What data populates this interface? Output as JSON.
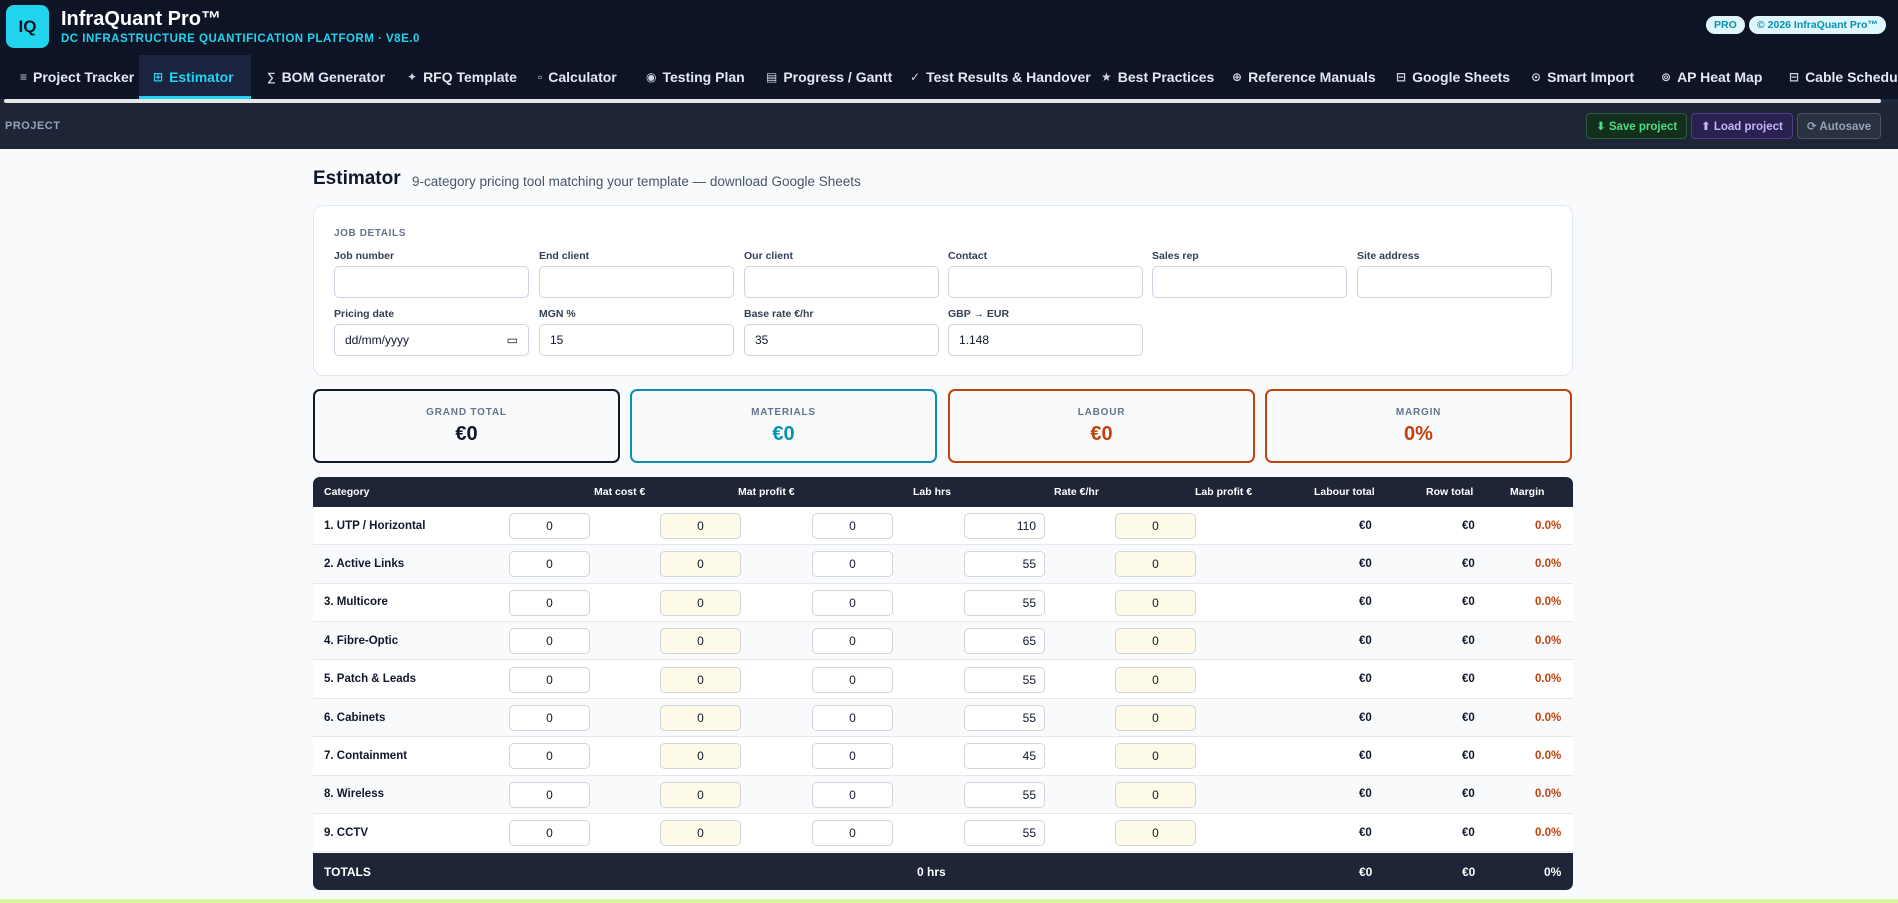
{
  "header": {
    "logo": "IQ",
    "title": "InfraQuant Pro™",
    "subtitle": "DC INFRASTRUCTURE QUANTIFICATION PLATFORM · V8E.0",
    "badge_pro": "PRO",
    "badge_copyright": "© 2026 InfraQuant Pro™"
  },
  "nav": [
    {
      "icon": "≡",
      "label": "Project Tracker"
    },
    {
      "icon": "⊞",
      "label": "Estimator"
    },
    {
      "icon": "∑",
      "label": "BOM Generator"
    },
    {
      "icon": "✦",
      "label": "RFQ Template"
    },
    {
      "icon": "▫",
      "label": "Calculator"
    },
    {
      "icon": "◉",
      "label": "Testing Plan"
    },
    {
      "icon": "▤",
      "label": "Progress / Gantt"
    },
    {
      "icon": "✓",
      "label": "Test Results & Handover"
    },
    {
      "icon": "★",
      "label": "Best Practices"
    },
    {
      "icon": "⊕",
      "label": "Reference Manuals"
    },
    {
      "icon": "⊟",
      "label": "Google Sheets"
    },
    {
      "icon": "⊙",
      "label": "Smart Import"
    },
    {
      "icon": "⊚",
      "label": "AP Heat Map"
    },
    {
      "icon": "⊟",
      "label": "Cable Schedu"
    }
  ],
  "project_bar": {
    "label": "PROJECT",
    "save": "⬇ Save project",
    "load": "⬆ Load project",
    "autosave": "⟳ Autosave"
  },
  "page": {
    "title": "Estimator",
    "description": "9-category pricing tool matching your template — download Google Sheets"
  },
  "job": {
    "section_title": "JOB DETAILS",
    "fields": [
      {
        "label": "Job number",
        "value": ""
      },
      {
        "label": "End client",
        "value": ""
      },
      {
        "label": "Our client",
        "value": ""
      },
      {
        "label": "Contact",
        "value": ""
      },
      {
        "label": "Sales rep",
        "value": ""
      },
      {
        "label": "Site address",
        "value": ""
      },
      {
        "label": "Pricing date",
        "value": "dd/mm/yyyy"
      },
      {
        "label": "MGN %",
        "value": "15"
      },
      {
        "label": "Base rate €/hr",
        "value": "35"
      },
      {
        "label": "GBP → EUR",
        "value": "1.148"
      }
    ]
  },
  "summary": [
    {
      "label": "GRAND TOTAL",
      "value": "€0",
      "color": "#0f172a"
    },
    {
      "label": "MATERIALS",
      "value": "€0",
      "color": "#0891b2"
    },
    {
      "label": "LABOUR",
      "value": "€0",
      "color": "#c2410c"
    },
    {
      "label": "MARGIN",
      "value": "0%",
      "color": "#c2410c"
    }
  ],
  "table": {
    "headers": [
      "Category",
      "Mat cost €",
      "Mat profit €",
      "Lab hrs",
      "Rate €/hr",
      "Lab profit €",
      "Labour total",
      "Row total",
      "Margin"
    ],
    "rows": [
      {
        "category": "1. UTP / Horizontal",
        "mat_cost": "0",
        "mat_profit": "0",
        "lab_hrs": "0",
        "rate": "110",
        "lab_profit": "0",
        "labour_total": "€0",
        "row_total": "€0",
        "margin": "0.0%"
      },
      {
        "category": "2. Active Links",
        "mat_cost": "0",
        "mat_profit": "0",
        "lab_hrs": "0",
        "rate": "55",
        "lab_profit": "0",
        "labour_total": "€0",
        "row_total": "€0",
        "margin": "0.0%"
      },
      {
        "category": "3. Multicore",
        "mat_cost": "0",
        "mat_profit": "0",
        "lab_hrs": "0",
        "rate": "55",
        "lab_profit": "0",
        "labour_total": "€0",
        "row_total": "€0",
        "margin": "0.0%"
      },
      {
        "category": "4. Fibre-Optic",
        "mat_cost": "0",
        "mat_profit": "0",
        "lab_hrs": "0",
        "rate": "65",
        "lab_profit": "0",
        "labour_total": "€0",
        "row_total": "€0",
        "margin": "0.0%"
      },
      {
        "category": "5. Patch & Leads",
        "mat_cost": "0",
        "mat_profit": "0",
        "lab_hrs": "0",
        "rate": "55",
        "lab_profit": "0",
        "labour_total": "€0",
        "row_total": "€0",
        "margin": "0.0%"
      },
      {
        "category": "6. Cabinets",
        "mat_cost": "0",
        "mat_profit": "0",
        "lab_hrs": "0",
        "rate": "55",
        "lab_profit": "0",
        "labour_total": "€0",
        "row_total": "€0",
        "margin": "0.0%"
      },
      {
        "category": "7. Containment",
        "mat_cost": "0",
        "mat_profit": "0",
        "lab_hrs": "0",
        "rate": "45",
        "lab_profit": "0",
        "labour_total": "€0",
        "row_total": "€0",
        "margin": "0.0%"
      },
      {
        "category": "8. Wireless",
        "mat_cost": "0",
        "mat_profit": "0",
        "lab_hrs": "0",
        "rate": "55",
        "lab_profit": "0",
        "labour_total": "€0",
        "row_total": "€0",
        "margin": "0.0%"
      },
      {
        "category": "9. CCTV",
        "mat_cost": "0",
        "mat_profit": "0",
        "lab_hrs": "0",
        "rate": "55",
        "lab_profit": "0",
        "labour_total": "€0",
        "row_total": "€0",
        "margin": "0.0%"
      }
    ],
    "totals": {
      "label": "TOTALS",
      "hours": "0 hrs",
      "labour_total": "€0",
      "row_total": "€0",
      "margin": "0%"
    }
  },
  "colors": {
    "accent": "#22d3ee",
    "header_bg": "#0d1425",
    "table_header_bg": "#1e2536",
    "labour_orange": "#c2410c",
    "materials_teal": "#0891b2"
  }
}
